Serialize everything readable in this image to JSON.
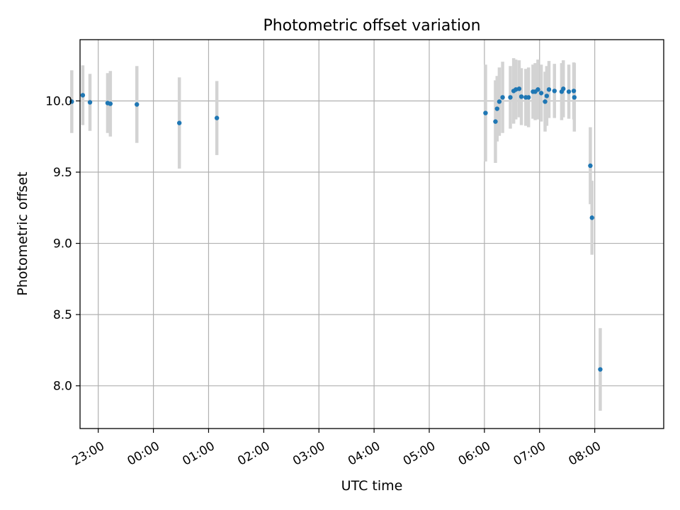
{
  "chart_data": {
    "type": "scatter",
    "title": "Photometric offset variation",
    "xlabel": "UTC time",
    "ylabel": "Photometric offset",
    "grid": true,
    "colors": {
      "point": "#1f77b4",
      "errorbar": "#d3d3d3"
    },
    "x_unit": "hours relative to 00:00 UTC",
    "xlim": [
      -1.33,
      9.25
    ],
    "ylim": [
      7.7,
      10.43
    ],
    "x_ticks": [
      {
        "x": -1,
        "label": "23:00"
      },
      {
        "x": 0,
        "label": "00:00"
      },
      {
        "x": 1,
        "label": "01:00"
      },
      {
        "x": 2,
        "label": "02:00"
      },
      {
        "x": 3,
        "label": "03:00"
      },
      {
        "x": 4,
        "label": "04:00"
      },
      {
        "x": 5,
        "label": "05:00"
      },
      {
        "x": 6,
        "label": "06:00"
      },
      {
        "x": 7,
        "label": "07:00"
      },
      {
        "x": 8,
        "label": "08:00"
      }
    ],
    "y_ticks": [
      {
        "y": 8.0,
        "label": "8.0"
      },
      {
        "y": 8.5,
        "label": "8.5"
      },
      {
        "y": 9.0,
        "label": "9.0"
      },
      {
        "y": 9.5,
        "label": "9.5"
      },
      {
        "y": 10.0,
        "label": "10.0"
      }
    ],
    "points": [
      {
        "x": -1.48,
        "y": 9.995,
        "err": 0.22
      },
      {
        "x": -1.28,
        "y": 10.04,
        "err": 0.21
      },
      {
        "x": -1.15,
        "y": 9.99,
        "err": 0.2
      },
      {
        "x": -0.83,
        "y": 9.985,
        "err": 0.21
      },
      {
        "x": -0.78,
        "y": 9.98,
        "err": 0.23
      },
      {
        "x": -0.3,
        "y": 9.975,
        "err": 0.27
      },
      {
        "x": 0.47,
        "y": 9.845,
        "err": 0.32
      },
      {
        "x": 1.15,
        "y": 9.88,
        "err": 0.26
      },
      {
        "x": 6.02,
        "y": 9.915,
        "err": 0.34
      },
      {
        "x": 6.2,
        "y": 9.855,
        "err": 0.29
      },
      {
        "x": 6.23,
        "y": 9.945,
        "err": 0.23
      },
      {
        "x": 6.27,
        "y": 9.995,
        "err": 0.24
      },
      {
        "x": 6.33,
        "y": 10.025,
        "err": 0.25
      },
      {
        "x": 6.47,
        "y": 10.025,
        "err": 0.22
      },
      {
        "x": 6.53,
        "y": 10.07,
        "err": 0.23
      },
      {
        "x": 6.57,
        "y": 10.08,
        "err": 0.21
      },
      {
        "x": 6.63,
        "y": 10.085,
        "err": 0.2
      },
      {
        "x": 6.67,
        "y": 10.03,
        "err": 0.2
      },
      {
        "x": 6.75,
        "y": 10.025,
        "err": 0.2
      },
      {
        "x": 6.8,
        "y": 10.025,
        "err": 0.21
      },
      {
        "x": 6.88,
        "y": 10.065,
        "err": 0.19
      },
      {
        "x": 6.92,
        "y": 10.065,
        "err": 0.2
      },
      {
        "x": 6.97,
        "y": 10.08,
        "err": 0.21
      },
      {
        "x": 7.03,
        "y": 10.055,
        "err": 0.2
      },
      {
        "x": 7.1,
        "y": 9.995,
        "err": 0.21
      },
      {
        "x": 7.13,
        "y": 10.035,
        "err": 0.21
      },
      {
        "x": 7.17,
        "y": 10.08,
        "err": 0.2
      },
      {
        "x": 7.27,
        "y": 10.07,
        "err": 0.19
      },
      {
        "x": 7.4,
        "y": 10.065,
        "err": 0.2
      },
      {
        "x": 7.43,
        "y": 10.085,
        "err": 0.2
      },
      {
        "x": 7.53,
        "y": 10.065,
        "err": 0.19
      },
      {
        "x": 7.62,
        "y": 10.07,
        "err": 0.2
      },
      {
        "x": 7.63,
        "y": 10.025,
        "err": 0.24
      },
      {
        "x": 7.92,
        "y": 9.545,
        "err": 0.27
      },
      {
        "x": 7.95,
        "y": 9.18,
        "err": 0.26
      },
      {
        "x": 8.1,
        "y": 8.115,
        "err": 0.29
      }
    ]
  }
}
